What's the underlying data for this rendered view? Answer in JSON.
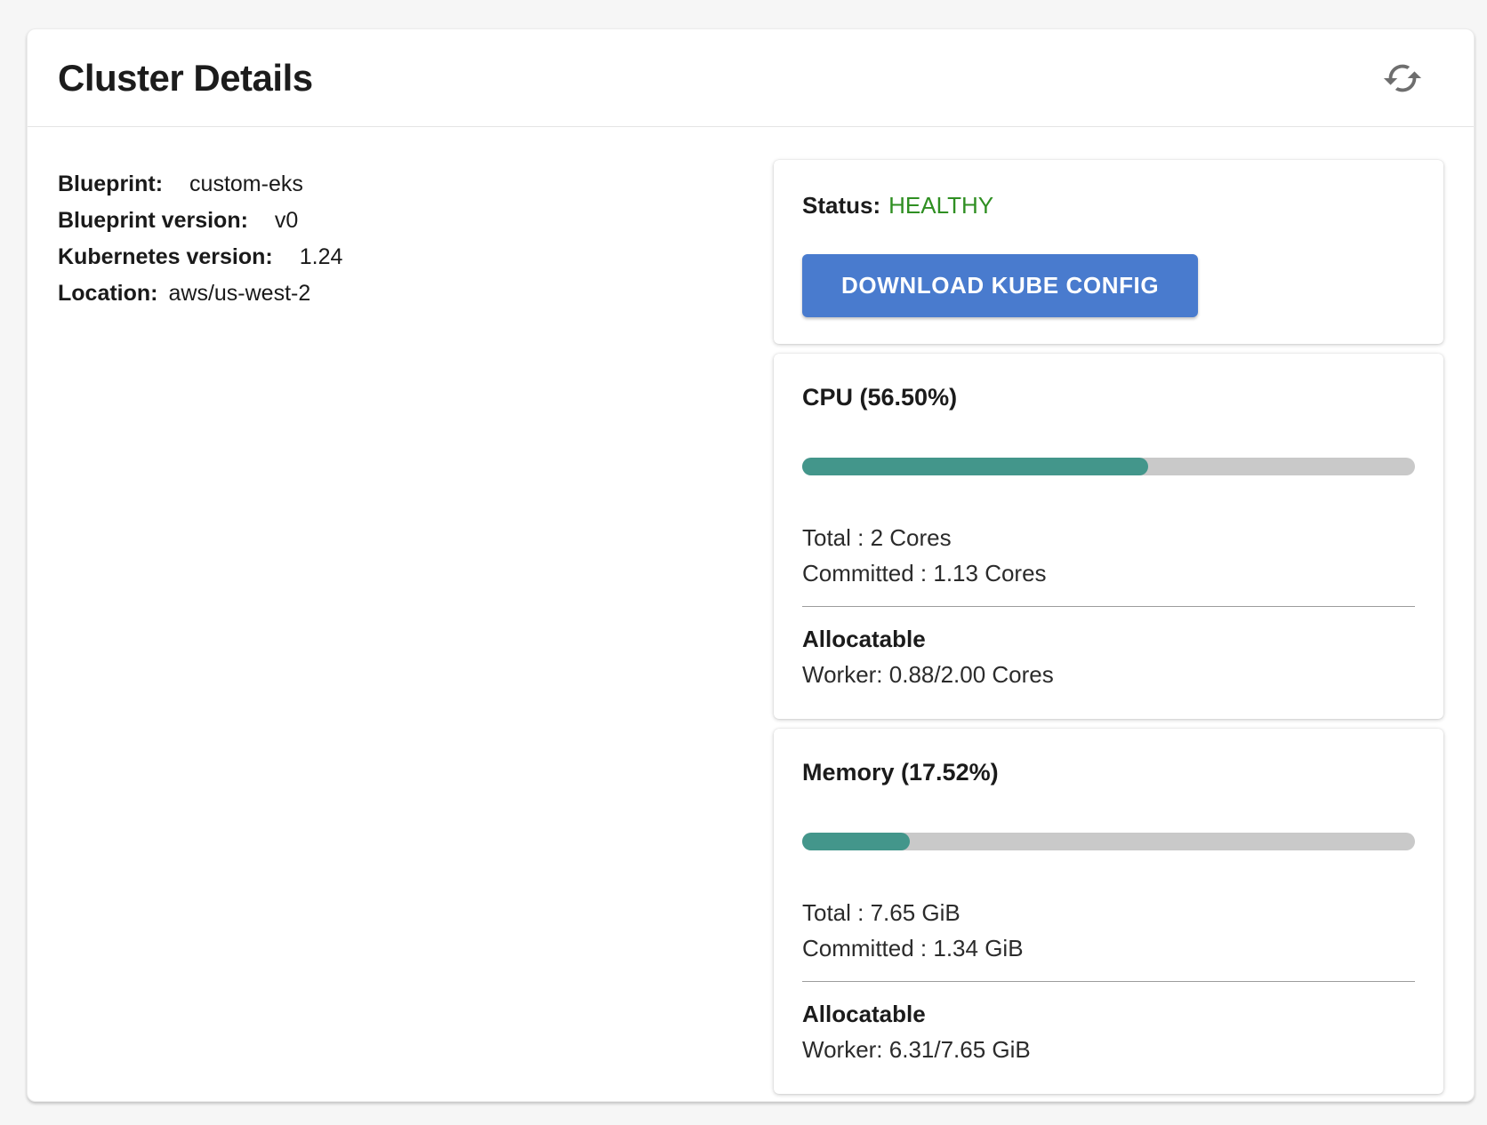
{
  "header": {
    "title": "Cluster Details"
  },
  "details": {
    "rows": [
      {
        "label": "Blueprint:",
        "value": "custom-eks"
      },
      {
        "label": "Blueprint version:",
        "value": "v0"
      },
      {
        "label": "Kubernetes version:",
        "value": "1.24"
      },
      {
        "label": "Location:",
        "value": "aws/us-west-2"
      }
    ]
  },
  "status": {
    "label": "Status:",
    "value": "HEALTHY",
    "value_color": "#2F8F22",
    "button_label": "DOWNLOAD KUBE CONFIG",
    "button_color": "#497BCE"
  },
  "cpu": {
    "title": "CPU (56.50%)",
    "percent": 56.5,
    "total": "Total : 2 Cores",
    "committed": "Committed : 1.13 Cores",
    "allocatable_label": "Allocatable",
    "worker": "Worker: 0.88/2.00 Cores"
  },
  "memory": {
    "title": "Memory (17.52%)",
    "percent": 17.52,
    "total": "Total : 7.65 GiB",
    "committed": "Committed : 1.34 GiB",
    "allocatable_label": "Allocatable",
    "worker": "Worker: 6.31/7.65 GiB"
  },
  "colors": {
    "progress_fill": "#43968B",
    "progress_track": "#C9C9C9"
  },
  "icons": {
    "refresh": "refresh-cycle-arrows"
  }
}
